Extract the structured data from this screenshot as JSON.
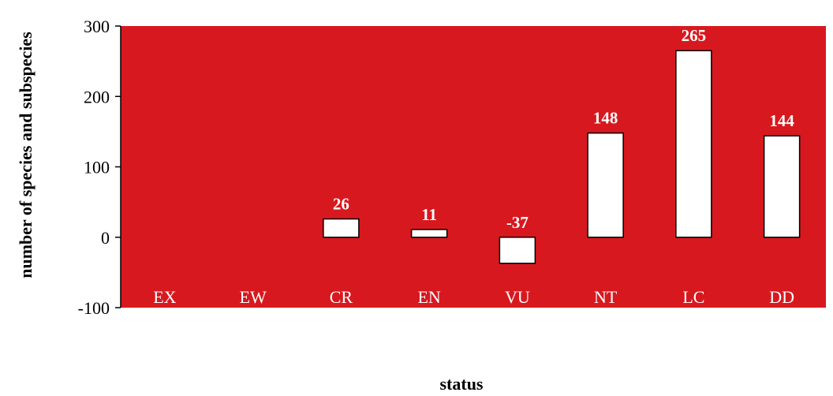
{
  "chart_data": {
    "type": "bar",
    "categories": [
      "EX",
      "EW",
      "CR",
      "EN",
      "VU",
      "NT",
      "LC",
      "DD"
    ],
    "values": [
      null,
      null,
      26,
      11,
      -37,
      148,
      265,
      144
    ],
    "data_labels": [
      "",
      "",
      "26",
      "11",
      "-37",
      "148",
      "265",
      "144"
    ],
    "xlabel": "status",
    "ylabel": "number of species and subspecies",
    "ylim": [
      -100,
      300
    ],
    "yticks": [
      -100,
      0,
      100,
      200,
      300
    ],
    "ytick_labels": [
      "-100",
      "0",
      "100",
      "200",
      "300"
    ],
    "grid": false,
    "legend": "none",
    "colors": {
      "plot_background": "#d7191f",
      "bar_fill": "#ffffff",
      "bar_stroke": "#000000",
      "data_label": "#ffffff",
      "category_label": "#ffffff"
    }
  }
}
